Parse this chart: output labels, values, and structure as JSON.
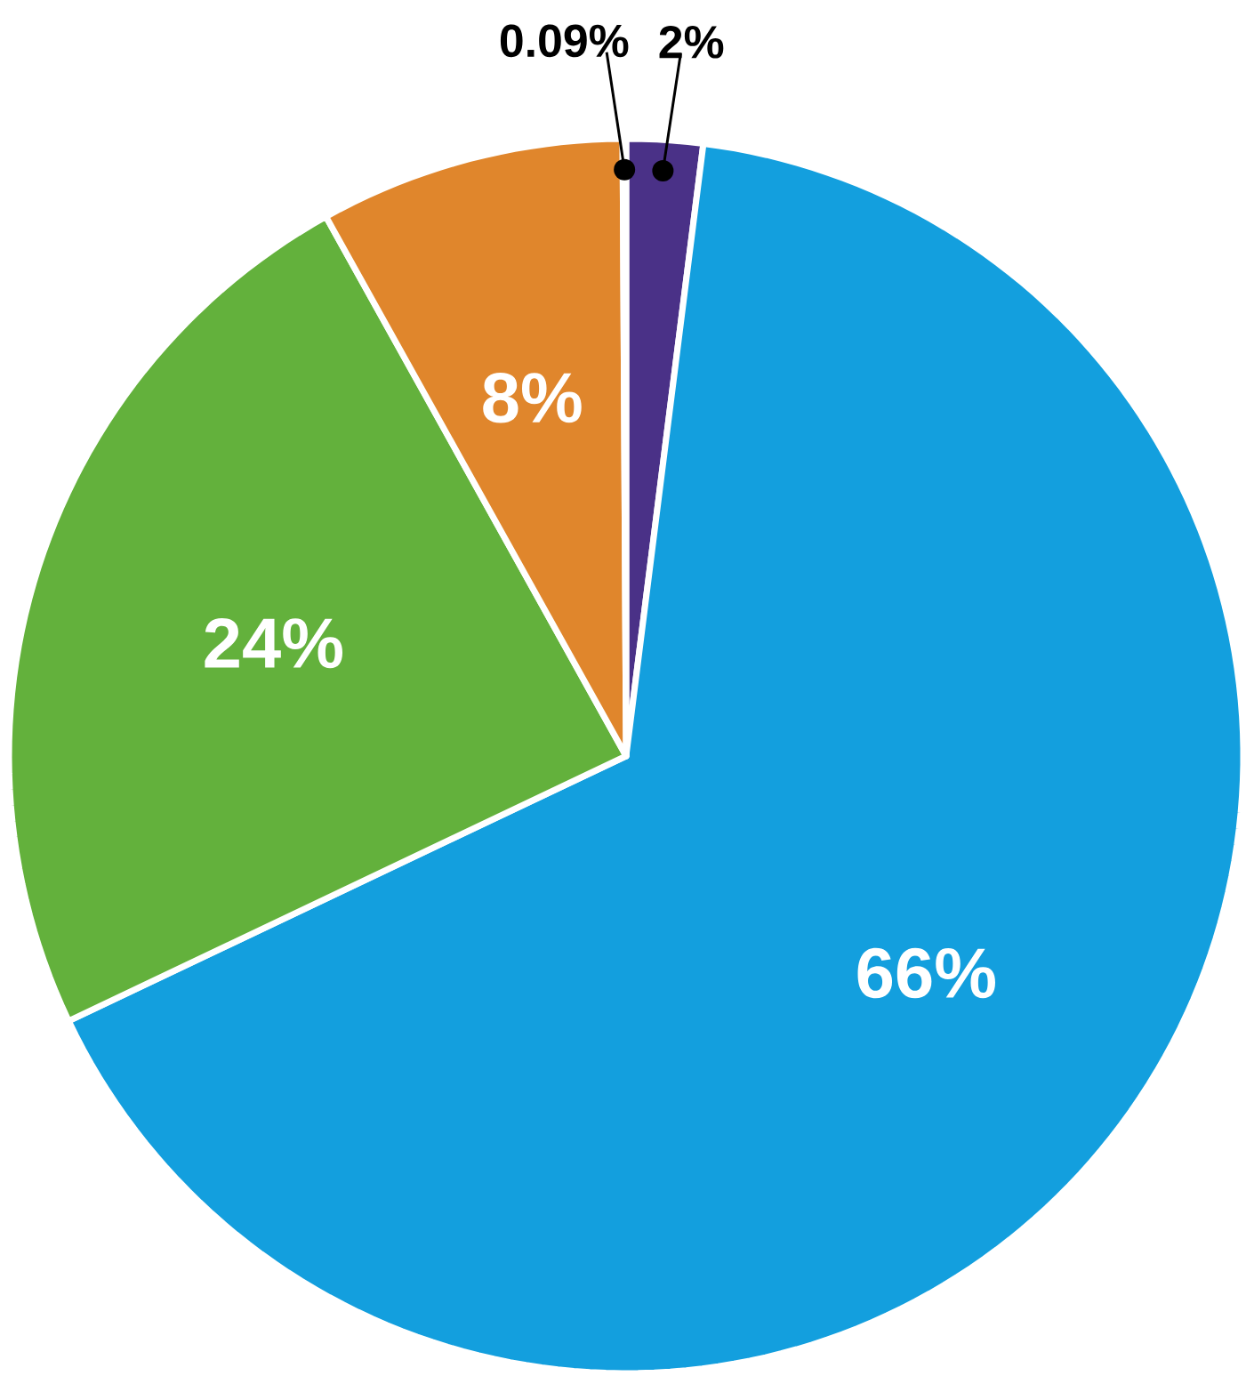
{
  "chart_data": {
    "type": "pie",
    "categories": [
      null,
      null,
      null,
      null,
      null
    ],
    "values": [
      2,
      66,
      24,
      8,
      0.09
    ],
    "colors": [
      "#4a3187",
      "#139fde",
      "#63b13c",
      "#e0862c",
      "#c8401a"
    ],
    "value_labels": [
      "2%",
      "66%",
      "24%",
      "8%",
      "0.09%"
    ]
  }
}
